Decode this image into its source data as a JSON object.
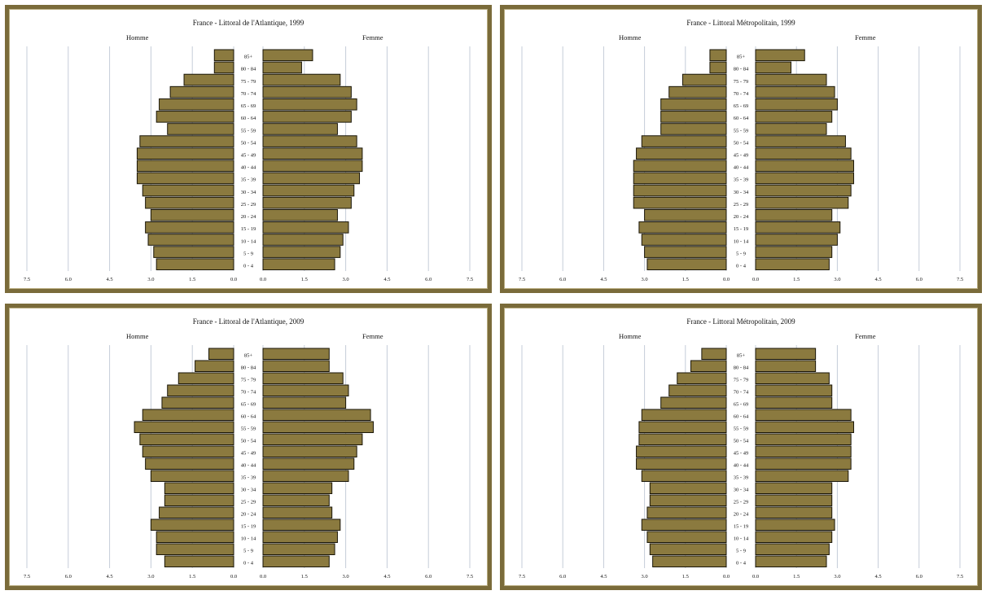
{
  "chart_data": [
    {
      "type": "bar",
      "title": "France - Littoral de l'Atlantique, 1999",
      "left_label": "Homme",
      "right_label": "Femme",
      "xlim": [
        -7.5,
        7.5
      ],
      "x_ticks": [
        "7.5",
        "6.0",
        "4.5",
        "3.0",
        "1.5",
        "0.0",
        "0.0",
        "1.5",
        "3.0",
        "4.5",
        "6.0",
        "7.5"
      ],
      "categories": [
        "85+",
        "80 - 84",
        "75 - 79",
        "70 - 74",
        "65 - 69",
        "60 - 64",
        "55 - 59",
        "50 - 54",
        "45 - 49",
        "40 - 44",
        "35 - 39",
        "30 - 34",
        "25 - 29",
        "20 - 24",
        "15 - 19",
        "10 - 14",
        "5 - 9",
        "0 - 4"
      ],
      "series": [
        {
          "name": "Homme",
          "values": [
            0.7,
            0.7,
            1.8,
            2.3,
            2.7,
            2.8,
            2.4,
            3.4,
            3.5,
            3.5,
            3.5,
            3.3,
            3.2,
            3.0,
            3.2,
            3.1,
            2.9,
            2.8
          ]
        },
        {
          "name": "Femme",
          "values": [
            1.8,
            1.4,
            2.8,
            3.2,
            3.4,
            3.2,
            2.7,
            3.4,
            3.6,
            3.6,
            3.5,
            3.3,
            3.2,
            2.7,
            3.1,
            2.9,
            2.8,
            2.6
          ]
        }
      ]
    },
    {
      "type": "bar",
      "title": "France - Littoral Métropolitain, 1999",
      "left_label": "Homme",
      "right_label": "Femme",
      "xlim": [
        -7.5,
        7.5
      ],
      "x_ticks": [
        "7.5",
        "6.0",
        "4.5",
        "3.0",
        "1.5",
        "0.0",
        "0.0",
        "1.5",
        "3.0",
        "4.5",
        "6.0",
        "7.5"
      ],
      "categories": [
        "85+",
        "80 - 84",
        "75 - 79",
        "70 - 74",
        "65 - 69",
        "60 - 64",
        "55 - 59",
        "50 - 54",
        "45 - 49",
        "40 - 44",
        "35 - 39",
        "30 - 34",
        "25 - 29",
        "20 - 24",
        "15 - 19",
        "10 - 14",
        "5 - 9",
        "0 - 4"
      ],
      "series": [
        {
          "name": "Homme",
          "values": [
            0.6,
            0.6,
            1.6,
            2.1,
            2.4,
            2.4,
            2.4,
            3.1,
            3.3,
            3.4,
            3.4,
            3.4,
            3.4,
            3.0,
            3.2,
            3.1,
            3.0,
            2.9
          ]
        },
        {
          "name": "Femme",
          "values": [
            1.8,
            1.3,
            2.6,
            2.9,
            3.0,
            2.8,
            2.6,
            3.3,
            3.5,
            3.6,
            3.6,
            3.5,
            3.4,
            2.8,
            3.1,
            3.0,
            2.8,
            2.7
          ]
        }
      ]
    },
    {
      "type": "bar",
      "title": "France - Littoral de l'Atlantique, 2009",
      "left_label": "Homme",
      "right_label": "Femme",
      "xlim": [
        -7.5,
        7.5
      ],
      "x_ticks": [
        "7.5",
        "6.0",
        "4.5",
        "3.0",
        "1.5",
        "0.0",
        "0.0",
        "1.5",
        "3.0",
        "4.5",
        "6.0",
        "7.5"
      ],
      "categories": [
        "85+",
        "80 - 84",
        "75 - 79",
        "70 - 74",
        "65 - 69",
        "60 - 64",
        "55 - 59",
        "50 - 54",
        "45 - 49",
        "40 - 44",
        "35 - 39",
        "30 - 34",
        "25 - 29",
        "20 - 24",
        "15 - 19",
        "10 - 14",
        "5 - 9",
        "0 - 4"
      ],
      "series": [
        {
          "name": "Homme",
          "values": [
            0.9,
            1.4,
            2.0,
            2.4,
            2.6,
            3.3,
            3.6,
            3.4,
            3.3,
            3.2,
            3.0,
            2.5,
            2.5,
            2.7,
            3.0,
            2.8,
            2.8,
            2.5
          ]
        },
        {
          "name": "Femme",
          "values": [
            2.4,
            2.4,
            2.9,
            3.1,
            3.0,
            3.9,
            4.0,
            3.6,
            3.4,
            3.3,
            3.1,
            2.5,
            2.4,
            2.5,
            2.8,
            2.7,
            2.6,
            2.4
          ]
        }
      ]
    },
    {
      "type": "bar",
      "title": "France - Littoral Métropolitain, 2009",
      "left_label": "Homme",
      "right_label": "Femme",
      "xlim": [
        -7.5,
        7.5
      ],
      "x_ticks": [
        "7.5",
        "6.0",
        "4.5",
        "3.0",
        "1.5",
        "0.0",
        "0.0",
        "1.5",
        "3.0",
        "4.5",
        "6.0",
        "7.5"
      ],
      "categories": [
        "85+",
        "80 - 84",
        "75 - 79",
        "70 - 74",
        "65 - 69",
        "60 - 64",
        "55 - 59",
        "50 - 54",
        "45 - 49",
        "40 - 44",
        "35 - 39",
        "30 - 34",
        "25 - 29",
        "20 - 24",
        "15 - 19",
        "10 - 14",
        "5 - 9",
        "0 - 4"
      ],
      "series": [
        {
          "name": "Homme",
          "values": [
            0.9,
            1.3,
            1.8,
            2.1,
            2.4,
            3.1,
            3.2,
            3.2,
            3.3,
            3.3,
            3.1,
            2.8,
            2.8,
            2.9,
            3.1,
            2.9,
            2.8,
            2.7
          ]
        },
        {
          "name": "Femme",
          "values": [
            2.2,
            2.2,
            2.7,
            2.8,
            2.8,
            3.5,
            3.6,
            3.5,
            3.5,
            3.5,
            3.4,
            2.8,
            2.8,
            2.8,
            2.9,
            2.8,
            2.7,
            2.6
          ]
        }
      ]
    }
  ],
  "style": {
    "bar_fill": "#8b7a3f",
    "bar_stroke": "#1a1608",
    "grid_color": "#c5ccd8",
    "frame_color": "#7a6b3a"
  }
}
